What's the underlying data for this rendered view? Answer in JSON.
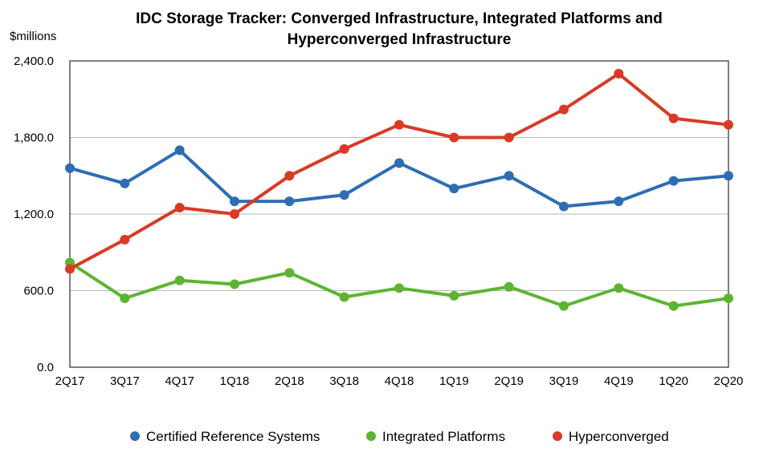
{
  "chart_data": {
    "type": "line",
    "title_line1": "IDC Storage Tracker: Converged Infrastructure, Integrated Platforms and",
    "title_line2": "Hyperconverged Infrastructure",
    "ylabel": "$millions",
    "xlabel": "",
    "ylim": [
      0,
      2400
    ],
    "yticks": [
      0,
      600,
      1200,
      1800,
      2400
    ],
    "ytick_labels": [
      "0.0",
      "600.0",
      "1,200.0",
      "1,800.0",
      "2,400.0"
    ],
    "grid": true,
    "legend_position": "bottom",
    "categories": [
      "2Q17",
      "3Q17",
      "4Q17",
      "1Q18",
      "2Q18",
      "3Q18",
      "4Q18",
      "1Q19",
      "2Q19",
      "3Q19",
      "4Q19",
      "1Q20",
      "2Q20"
    ],
    "series": [
      {
        "name": "Certified Reference Systems",
        "color": "#2e6db4",
        "values": [
          1560,
          1440,
          1700,
          1300,
          1300,
          1350,
          1600,
          1400,
          1500,
          1260,
          1300,
          1460,
          1500
        ]
      },
      {
        "name": "Integrated Platforms",
        "color": "#5cb531",
        "values": [
          820,
          540,
          680,
          650,
          740,
          550,
          620,
          560,
          630,
          480,
          620,
          480,
          540
        ]
      },
      {
        "name": "Hyperconverged",
        "color": "#d83a26",
        "values": [
          770,
          1000,
          1250,
          1200,
          1500,
          1710,
          1900,
          1800,
          1800,
          2020,
          2300,
          1950,
          1900
        ]
      }
    ]
  }
}
